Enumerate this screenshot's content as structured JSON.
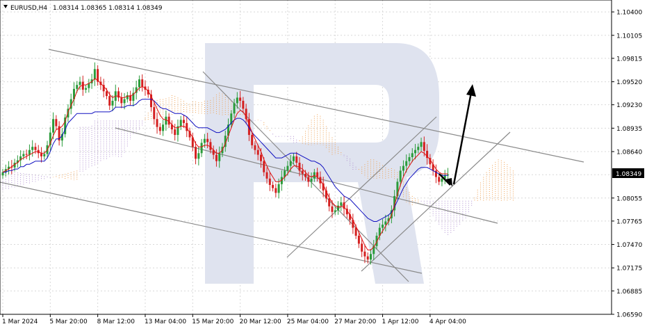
{
  "header": {
    "symbol": "EURUSD,H4",
    "ohlc": "1.08314 1.08365 1.08314 1.08349"
  },
  "current_price_label": "1.08349",
  "colors": {
    "bull": "#2a9b3a",
    "bear": "#d42020",
    "tenkan": "#e01010",
    "kijun": "#1010c0",
    "cloud_a": "#f0a050",
    "cloud_b": "#b090d0",
    "trendline": "#8a8a8a",
    "arrow": "#000000",
    "watermark": "#dfe3ef",
    "grid": "#d8d8d8"
  },
  "chart_data": {
    "type": "candlestick",
    "y_axis": {
      "ticks": [
        "1.10400",
        "1.10105",
        "1.09815",
        "1.09520",
        "1.09230",
        "1.08935",
        "1.08640",
        "1.08349",
        "1.08055",
        "1.07765",
        "1.07470",
        "1.07175",
        "1.06885",
        "1.06590"
      ],
      "tick_values": [
        1.104,
        1.10105,
        1.09815,
        1.0952,
        1.0923,
        1.08935,
        1.0864,
        1.08349,
        1.08055,
        1.07765,
        1.0747,
        1.07175,
        1.06885,
        1.0659
      ],
      "range": [
        1.0659,
        1.1055
      ]
    },
    "x_axis": {
      "labels": [
        "1 Mar 2024",
        "5 Mar 20:00",
        "8 Mar 12:00",
        "13 Mar 04:00",
        "15 Mar 20:00",
        "20 Mar 12:00",
        "25 Mar 04:00",
        "27 Mar 20:00",
        "1 Apr 12:00",
        "4 Apr 04:00"
      ],
      "label_bar_index": [
        0,
        16,
        32,
        48,
        64,
        80,
        96,
        112,
        128,
        144
      ]
    },
    "grid": true,
    "indicators": [
      "Ichimoku"
    ],
    "closes": [
      1.0838,
      1.0842,
      1.0845,
      1.0844,
      1.085,
      1.0853,
      1.0858,
      1.0861,
      1.086,
      1.0866,
      1.087,
      1.0866,
      1.0862,
      1.0858,
      1.0861,
      1.0872,
      1.0888,
      1.0905,
      1.0896,
      1.0878,
      1.0886,
      1.0907,
      1.0918,
      1.093,
      1.0943,
      1.0948,
      1.0952,
      1.0942,
      1.0944,
      1.095,
      1.0955,
      1.0968,
      1.0952,
      1.0948,
      1.094,
      1.0934,
      1.0922,
      1.0928,
      1.094,
      1.0932,
      1.0925,
      1.093,
      1.0935,
      1.0928,
      1.0938,
      1.0945,
      1.0955,
      1.0946,
      1.0942,
      1.0936,
      1.092,
      1.0905,
      1.0895,
      1.089,
      1.0898,
      1.0908,
      1.0898,
      1.0892,
      1.0885,
      1.0896,
      1.0904,
      1.09,
      1.089,
      1.0882,
      1.087,
      1.0855,
      1.0862,
      1.0875,
      1.088,
      1.0876,
      1.0866,
      1.086,
      1.0852,
      1.0862,
      1.087,
      1.0884,
      1.0898,
      1.0912,
      1.0925,
      1.0932,
      1.0928,
      1.0918,
      1.0905,
      1.0885,
      1.0872,
      1.0866,
      1.086,
      1.0852,
      1.0838,
      1.083,
      1.0822,
      1.0818,
      1.0812,
      1.0823,
      1.0832,
      1.084,
      1.0846,
      1.0852,
      1.0858,
      1.085,
      1.084,
      1.0836,
      1.0832,
      1.0826,
      1.083,
      1.0838,
      1.0832,
      1.0824,
      1.0815,
      1.0805,
      1.0795,
      1.0788,
      1.079,
      1.0796,
      1.08,
      1.0792,
      1.0785,
      1.0778,
      1.0768,
      1.0758,
      1.0748,
      1.0738,
      1.0732,
      1.0728,
      1.0735,
      1.0745,
      1.0758,
      1.0768,
      1.0772,
      1.0776,
      1.078,
      1.079,
      1.0808,
      1.0826,
      1.084,
      1.0846,
      1.0852,
      1.0857,
      1.0862,
      1.0866,
      1.087,
      1.0876,
      1.0865,
      1.0856,
      1.0848,
      1.084,
      1.0832,
      1.0826,
      1.083,
      1.0834,
      1.0835
    ],
    "tenkan": [
      1.0838,
      1.084,
      1.0842,
      1.0845,
      1.0848,
      1.085,
      1.0854,
      1.0856,
      1.0858,
      1.086,
      1.0862,
      1.0864,
      1.0864,
      1.0862,
      1.0862,
      1.0866,
      1.0874,
      1.0884,
      1.0892,
      1.0893,
      1.0896,
      1.0902,
      1.0914,
      1.0922,
      1.093,
      1.094,
      1.0946,
      1.0948,
      1.0948,
      1.095,
      1.0952,
      1.0956,
      1.0954,
      1.095,
      1.0946,
      1.0942,
      1.0936,
      1.0932,
      1.0934,
      1.0934,
      1.0932,
      1.0932,
      1.0934,
      1.0934,
      1.0936,
      1.094,
      1.0944,
      1.0946,
      1.0944,
      1.094,
      1.0934,
      1.0926,
      1.0918,
      1.091,
      1.0905,
      1.0904,
      1.0902,
      1.0898,
      1.0894,
      1.0894,
      1.0896,
      1.0896,
      1.0894,
      1.0888,
      1.0882,
      1.0874,
      1.087,
      1.087,
      1.0872,
      1.0872,
      1.087,
      1.0866,
      1.0862,
      1.0862,
      1.0866,
      1.0874,
      1.0884,
      1.0894,
      1.0904,
      1.0912,
      1.0916,
      1.0914,
      1.0908,
      1.0898,
      1.0888,
      1.088,
      1.0872,
      1.0864,
      1.0854,
      1.0846,
      1.0838,
      1.0832,
      1.0826,
      1.0826,
      1.0828,
      1.0832,
      1.0836,
      1.0842,
      1.0846,
      1.0846,
      1.0844,
      1.0842,
      1.0838,
      1.0834,
      1.0832,
      1.0834,
      1.0832,
      1.0828,
      1.0822,
      1.0814,
      1.0806,
      1.08,
      1.0796,
      1.0794,
      1.0795,
      1.0794,
      1.079,
      1.0784,
      1.0778,
      1.077,
      1.0762,
      1.0754,
      1.0746,
      1.074,
      1.074,
      1.0744,
      1.075,
      1.0758,
      1.0764,
      1.077,
      1.0776,
      1.0784,
      1.0796,
      1.081,
      1.0822,
      1.0832,
      1.084,
      1.0846,
      1.0852,
      1.0856,
      1.086,
      1.0864,
      1.0862,
      1.0858,
      1.0854,
      1.0848,
      1.0842,
      1.0838,
      1.0836,
      1.0836,
      1.0836
    ],
    "kijun": [
      1.0838,
      1.0838,
      1.084,
      1.084,
      1.0842,
      1.0842,
      1.0845,
      1.0845,
      1.0848,
      1.0848,
      1.085,
      1.0852,
      1.0852,
      1.0852,
      1.0852,
      1.0856,
      1.0864,
      1.0874,
      1.088,
      1.088,
      1.0884,
      1.0892,
      1.09,
      1.0904,
      1.0908,
      1.0912,
      1.0912,
      1.0912,
      1.0912,
      1.0912,
      1.0912,
      1.0914,
      1.0914,
      1.0914,
      1.0914,
      1.0914,
      1.0914,
      1.0916,
      1.092,
      1.092,
      1.092,
      1.092,
      1.0922,
      1.0922,
      1.0922,
      1.0924,
      1.0928,
      1.093,
      1.093,
      1.093,
      1.093,
      1.0928,
      1.0924,
      1.092,
      1.0918,
      1.0918,
      1.0916,
      1.0914,
      1.0912,
      1.0912,
      1.0912,
      1.091,
      1.0908,
      1.0904,
      1.09,
      1.0896,
      1.0894,
      1.0894,
      1.0894,
      1.0894,
      1.0892,
      1.089,
      1.0888,
      1.0888,
      1.089,
      1.0892,
      1.0896,
      1.09,
      1.0904,
      1.0906,
      1.0906,
      1.0904,
      1.09,
      1.0894,
      1.0888,
      1.0884,
      1.088,
      1.0876,
      1.0872,
      1.0868,
      1.0864,
      1.086,
      1.0856,
      1.0856,
      1.0856,
      1.0858,
      1.086,
      1.0862,
      1.0862,
      1.0862,
      1.086,
      1.0858,
      1.0856,
      1.0854,
      1.0852,
      1.0852,
      1.085,
      1.0848,
      1.0844,
      1.0838,
      1.0832,
      1.0826,
      1.082,
      1.0816,
      1.0812,
      1.0808,
      1.0806,
      1.0804,
      1.08,
      1.0796,
      1.0792,
      1.0788,
      1.0784,
      1.078,
      1.0778,
      1.0776,
      1.0776,
      1.0778,
      1.078,
      1.0782,
      1.0784,
      1.0788,
      1.0794,
      1.0802,
      1.081,
      1.0818,
      1.0824,
      1.083,
      1.0834,
      1.0838,
      1.0842,
      1.0844,
      1.0844,
      1.0844,
      1.0842,
      1.084,
      1.0838,
      1.0836,
      1.0834,
      1.0834,
      1.0834
    ]
  },
  "watermark": "R"
}
